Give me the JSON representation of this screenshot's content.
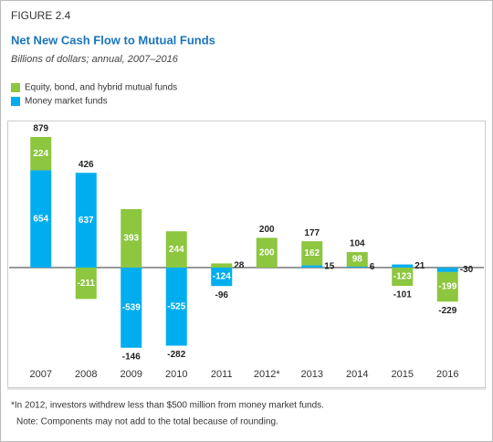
{
  "chart_data": {
    "type": "bar",
    "figure_label": "FIGURE 2.4",
    "title": "Net New Cash Flow to Mutual Funds",
    "subtitle": "Billions of dollars; annual, 2007–2016",
    "categories": [
      "2007",
      "2008",
      "2009",
      "2010",
      "2011",
      "2012*",
      "2013",
      "2014",
      "2015",
      "2016"
    ],
    "series": [
      {
        "name": "Money market funds",
        "color": "#00aeef",
        "values": [
          654,
          637,
          -539,
          -525,
          -124,
          null,
          15,
          6,
          21,
          -30
        ]
      },
      {
        "name": "Equity, bond, and hybrid mutual funds",
        "color": "#8dc63f",
        "values": [
          224,
          -211,
          393,
          244,
          28,
          200,
          162,
          98,
          -123,
          -199
        ]
      }
    ],
    "totals": [
      879,
      426,
      -146,
      -282,
      -96,
      200,
      177,
      104,
      -101,
      -229
    ],
    "stacked": true,
    "footnotes": [
      "*In 2012, investors withdrew less than $500 million from money market funds.",
      "Note: Components may not add to the total because of rounding."
    ]
  }
}
